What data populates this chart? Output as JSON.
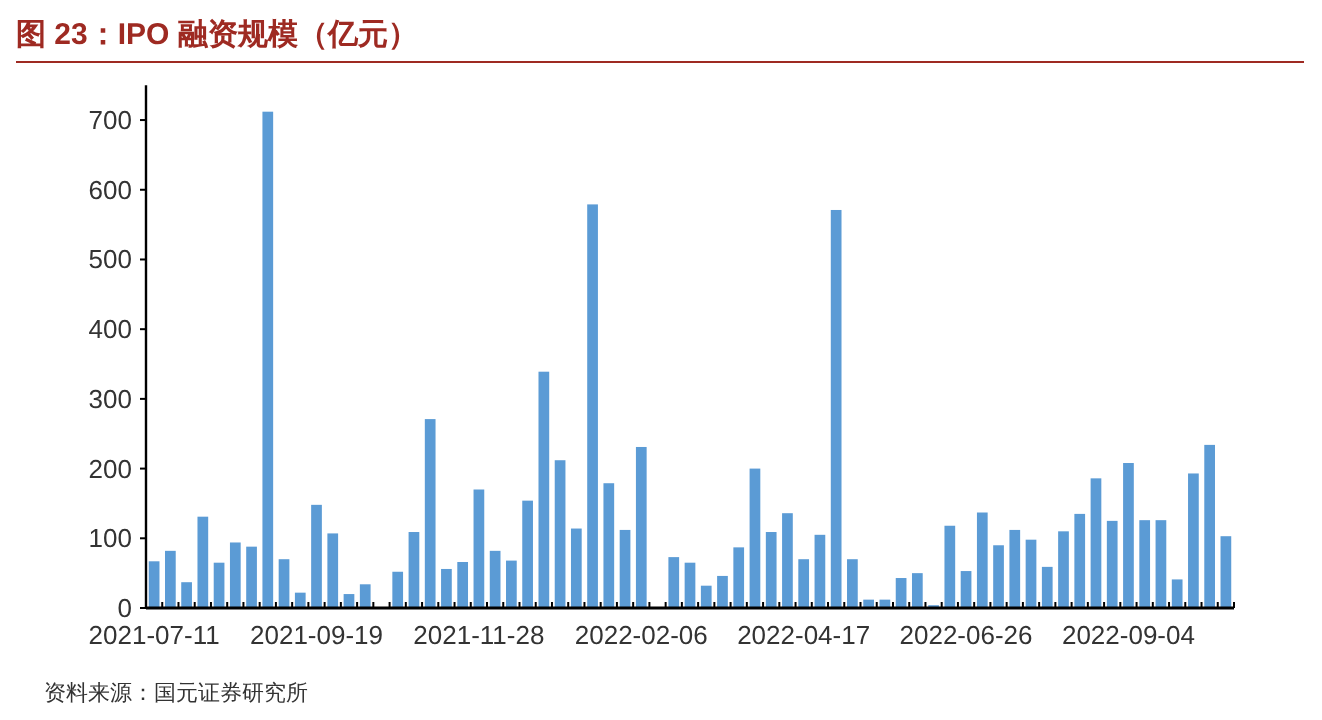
{
  "chart_data": {
    "type": "bar",
    "title": "图 23：IPO 融资规模（亿元）",
    "categories": [
      "2021-07-11",
      null,
      null,
      null,
      null,
      null,
      null,
      null,
      null,
      null,
      "2021-09-19",
      null,
      null,
      null,
      null,
      null,
      null,
      null,
      null,
      null,
      "2021-11-28",
      null,
      null,
      null,
      null,
      null,
      null,
      null,
      null,
      null,
      "2022-02-06",
      null,
      null,
      null,
      null,
      null,
      null,
      null,
      null,
      null,
      "2022-04-17",
      null,
      null,
      null,
      null,
      null,
      null,
      null,
      null,
      null,
      "2022-06-26",
      null,
      null,
      null,
      null,
      null,
      null,
      null,
      null,
      null,
      "2022-09-04",
      null,
      null,
      null,
      null,
      null,
      null
    ],
    "values": [
      67,
      82,
      37,
      131,
      65,
      94,
      88,
      712,
      70,
      22,
      148,
      107,
      20,
      34,
      0,
      52,
      109,
      271,
      56,
      66,
      170,
      82,
      68,
      154,
      339,
      212,
      114,
      579,
      179,
      112,
      231,
      0,
      73,
      65,
      32,
      46,
      87,
      200,
      109,
      136,
      70,
      105,
      571,
      70,
      12,
      12,
      43,
      50,
      4,
      118,
      53,
      137,
      90,
      112,
      98,
      59,
      110,
      135,
      186,
      125,
      208,
      126,
      126,
      41,
      193,
      234,
      103
    ],
    "color": "#5b9bd5",
    "ylim": [
      0,
      750
    ],
    "yticks": [
      0,
      100,
      200,
      300,
      400,
      500,
      600,
      700
    ],
    "annotations": [
      "资料来源：国元证券研究所"
    ]
  }
}
